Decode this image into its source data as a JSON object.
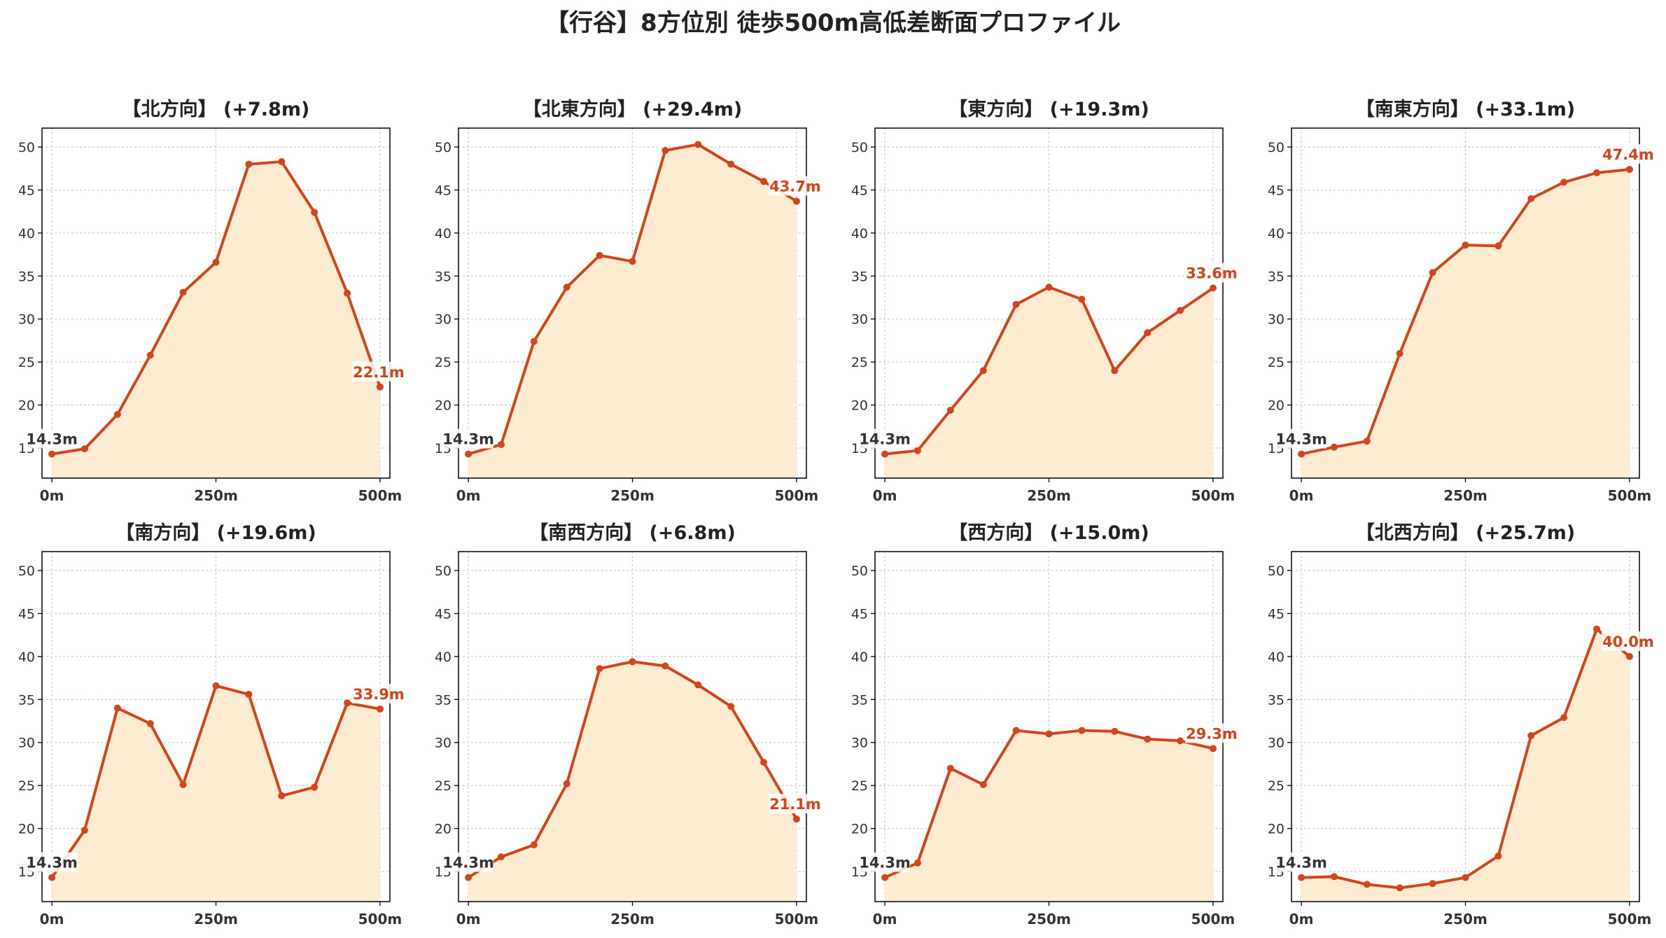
{
  "title": "【行谷】8方位別 徒歩500m高低差断面プロファイル",
  "colors": {
    "line": "#d4451a",
    "fill": "#feecd2",
    "grid": "#cccccc",
    "axis": "#000000",
    "start_label": "#333333",
    "end_label": "#d4451a"
  },
  "chart_data": [
    {
      "type": "area",
      "title": "【北方向】 (+7.8m)",
      "x": [
        0,
        50,
        100,
        150,
        200,
        250,
        300,
        350,
        400,
        450,
        500
      ],
      "values": [
        14.3,
        14.9,
        18.9,
        25.8,
        33.1,
        36.6,
        48.0,
        48.3,
        42.4,
        33.0,
        22.1
      ],
      "xticks": [
        "0m",
        "250m",
        "500m"
      ],
      "yticks": [
        15,
        20,
        25,
        30,
        35,
        40,
        45,
        50
      ],
      "start_label": "14.3m",
      "end_label": "22.1m",
      "xlim": [
        -15,
        515
      ],
      "ylim": [
        11.5,
        52.2
      ],
      "grid": true
    },
    {
      "type": "area",
      "title": "【北東方向】 (+29.4m)",
      "x": [
        0,
        50,
        100,
        150,
        200,
        250,
        300,
        350,
        400,
        450,
        500
      ],
      "values": [
        14.3,
        15.4,
        27.4,
        33.7,
        37.4,
        36.7,
        49.6,
        50.3,
        48.0,
        46.0,
        43.7
      ],
      "xticks": [
        "0m",
        "250m",
        "500m"
      ],
      "yticks": [
        15,
        20,
        25,
        30,
        35,
        40,
        45,
        50
      ],
      "start_label": "14.3m",
      "end_label": "43.7m",
      "xlim": [
        -15,
        515
      ],
      "ylim": [
        11.5,
        52.2
      ],
      "grid": true
    },
    {
      "type": "area",
      "title": "【東方向】 (+19.3m)",
      "x": [
        0,
        50,
        100,
        150,
        200,
        250,
        300,
        350,
        400,
        450,
        500
      ],
      "values": [
        14.3,
        14.7,
        19.4,
        24.0,
        31.7,
        33.7,
        32.3,
        24.0,
        28.4,
        31.0,
        33.6
      ],
      "xticks": [
        "0m",
        "250m",
        "500m"
      ],
      "yticks": [
        15,
        20,
        25,
        30,
        35,
        40,
        45,
        50
      ],
      "start_label": "14.3m",
      "end_label": "33.6m",
      "xlim": [
        -15,
        515
      ],
      "ylim": [
        11.5,
        52.2
      ],
      "grid": true
    },
    {
      "type": "area",
      "title": "【南東方向】 (+33.1m)",
      "x": [
        0,
        50,
        100,
        150,
        200,
        250,
        300,
        350,
        400,
        450,
        500
      ],
      "values": [
        14.3,
        15.1,
        15.8,
        26.0,
        35.4,
        38.6,
        38.5,
        44.0,
        45.9,
        47.0,
        47.4
      ],
      "xticks": [
        "0m",
        "250m",
        "500m"
      ],
      "yticks": [
        15,
        20,
        25,
        30,
        35,
        40,
        45,
        50
      ],
      "start_label": "14.3m",
      "end_label": "47.4m",
      "xlim": [
        -15,
        515
      ],
      "ylim": [
        11.5,
        52.2
      ],
      "grid": true
    },
    {
      "type": "area",
      "title": "【南方向】 (+19.6m)",
      "x": [
        0,
        50,
        100,
        150,
        200,
        250,
        300,
        350,
        400,
        450,
        500
      ],
      "values": [
        14.3,
        19.8,
        34.0,
        32.2,
        25.1,
        36.6,
        35.6,
        23.8,
        24.8,
        34.6,
        33.9
      ],
      "xticks": [
        "0m",
        "250m",
        "500m"
      ],
      "yticks": [
        15,
        20,
        25,
        30,
        35,
        40,
        45,
        50
      ],
      "start_label": "14.3m",
      "end_label": "33.9m",
      "xlim": [
        -15,
        515
      ],
      "ylim": [
        11.5,
        52.2
      ],
      "grid": true
    },
    {
      "type": "area",
      "title": "【南西方向】 (+6.8m)",
      "x": [
        0,
        50,
        100,
        150,
        200,
        250,
        300,
        350,
        400,
        450,
        500
      ],
      "values": [
        14.3,
        16.7,
        18.1,
        25.2,
        38.6,
        39.4,
        38.9,
        36.7,
        34.2,
        27.7,
        21.1
      ],
      "xticks": [
        "0m",
        "250m",
        "500m"
      ],
      "yticks": [
        15,
        20,
        25,
        30,
        35,
        40,
        45,
        50
      ],
      "start_label": "14.3m",
      "end_label": "21.1m",
      "xlim": [
        -15,
        515
      ],
      "ylim": [
        11.5,
        52.2
      ],
      "grid": true
    },
    {
      "type": "area",
      "title": "【西方向】 (+15.0m)",
      "x": [
        0,
        50,
        100,
        150,
        200,
        250,
        300,
        350,
        400,
        450,
        500
      ],
      "values": [
        14.3,
        16.0,
        27.0,
        25.1,
        31.4,
        31.0,
        31.4,
        31.3,
        30.4,
        30.2,
        29.3
      ],
      "xticks": [
        "0m",
        "250m",
        "500m"
      ],
      "yticks": [
        15,
        20,
        25,
        30,
        35,
        40,
        45,
        50
      ],
      "start_label": "14.3m",
      "end_label": "29.3m",
      "xlim": [
        -15,
        515
      ],
      "ylim": [
        11.5,
        52.2
      ],
      "grid": true
    },
    {
      "type": "area",
      "title": "【北西方向】 (+25.7m)",
      "x": [
        0,
        50,
        100,
        150,
        200,
        250,
        300,
        350,
        400,
        450,
        500
      ],
      "values": [
        14.3,
        14.4,
        13.5,
        13.1,
        13.6,
        14.3,
        16.8,
        30.8,
        32.9,
        43.2,
        40.0
      ],
      "xticks": [
        "0m",
        "250m",
        "500m"
      ],
      "yticks": [
        15,
        20,
        25,
        30,
        35,
        40,
        45,
        50
      ],
      "start_label": "14.3m",
      "end_label": "40.0m",
      "xlim": [
        -15,
        515
      ],
      "ylim": [
        11.5,
        52.2
      ],
      "grid": true
    }
  ]
}
